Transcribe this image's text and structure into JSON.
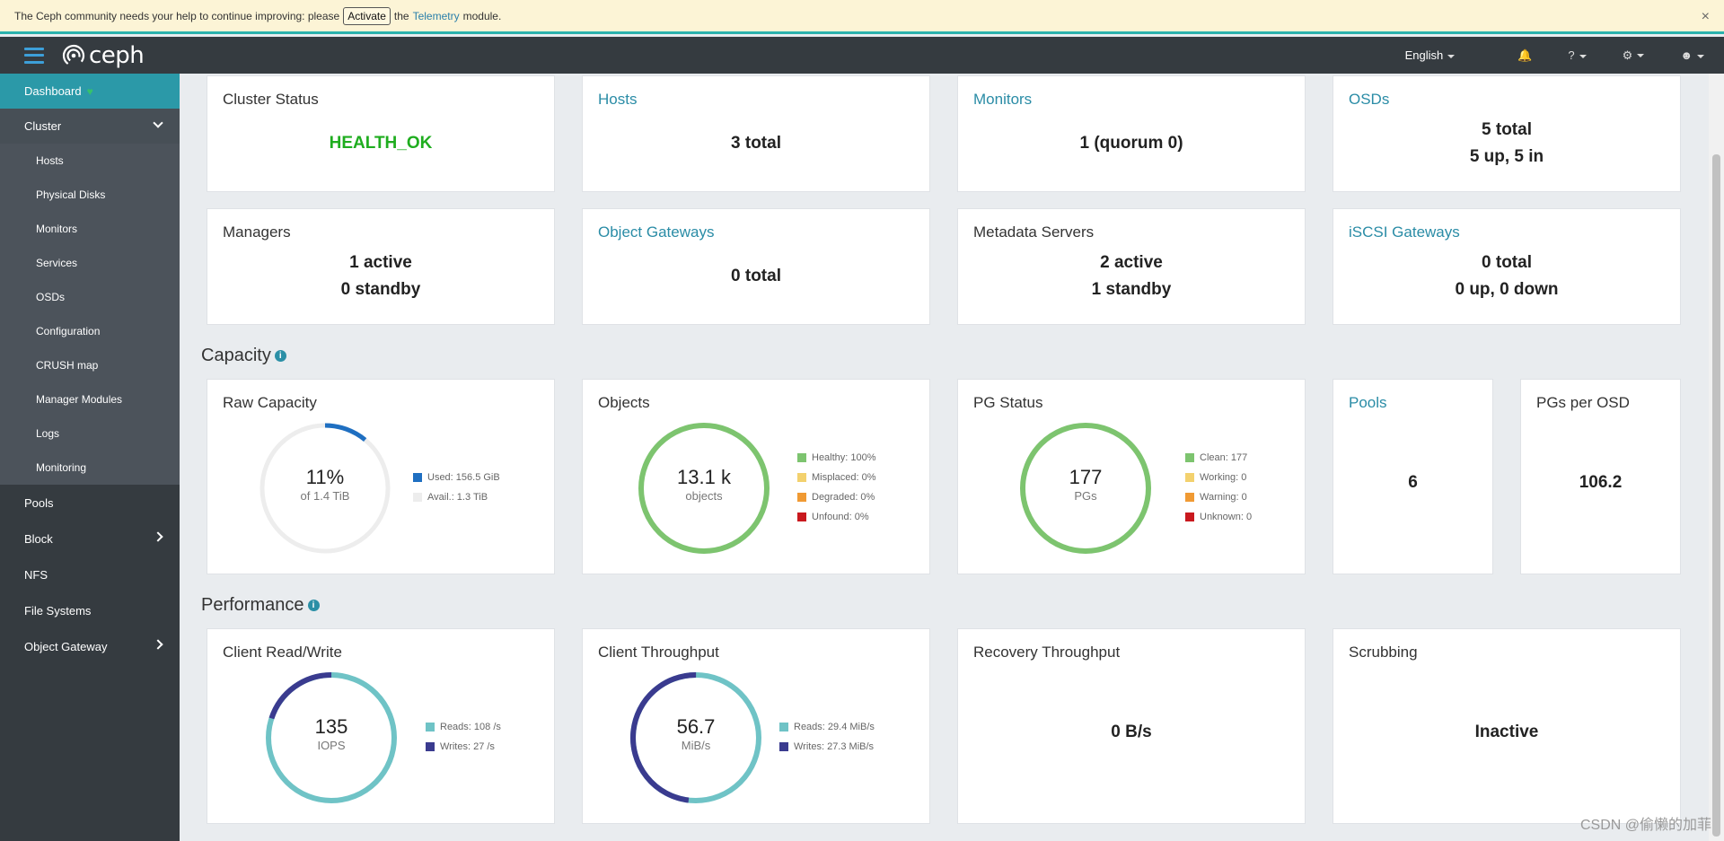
{
  "notice": {
    "text_before": "The Ceph community needs your help to continue improving: please",
    "activate_label": "Activate",
    "text_the": "the",
    "telemetry_link": "Telemetry",
    "text_after": "module.",
    "close_symbol": "×"
  },
  "topnav": {
    "brand": "ceph",
    "language": "English"
  },
  "sidebar": {
    "dashboard": "Dashboard",
    "cluster": "Cluster",
    "cluster_items": [
      "Hosts",
      "Physical Disks",
      "Monitors",
      "Services",
      "OSDs",
      "Configuration",
      "CRUSH map",
      "Manager Modules",
      "Logs",
      "Monitoring"
    ],
    "pools": "Pools",
    "block": "Block",
    "nfs": "NFS",
    "file_systems": "File Systems",
    "object_gateway": "Object Gateway"
  },
  "status": {
    "cluster_status": {
      "title": "Cluster Status",
      "value": "HEALTH_OK"
    },
    "hosts": {
      "title": "Hosts",
      "value": "3 total"
    },
    "monitors": {
      "title": "Monitors",
      "value": "1 (quorum 0)"
    },
    "osds": {
      "title": "OSDs",
      "line1": "5 total",
      "line2": "5 up, 5 in"
    },
    "managers": {
      "title": "Managers",
      "line1": "1 active",
      "line2": "0 standby"
    },
    "object_gateways": {
      "title": "Object Gateways",
      "value": "0 total"
    },
    "metadata_servers": {
      "title": "Metadata Servers",
      "line1": "2 active",
      "line2": "1 standby"
    },
    "iscsi": {
      "title": "iSCSI Gateways",
      "line1": "0 total",
      "line2": "0 up, 0 down"
    }
  },
  "capacity": {
    "section_title": "Capacity",
    "raw": {
      "title": "Raw Capacity",
      "big": "11%",
      "small": "of 1.4 TiB",
      "used_fraction": 0.11,
      "legend": [
        "Used: 156.5 GiB",
        "Avail.: 1.3 TiB"
      ]
    },
    "objects": {
      "title": "Objects",
      "big": "13.1 k",
      "small": "objects",
      "legend": [
        "Healthy: 100%",
        "Misplaced: 0%",
        "Degraded: 0%",
        "Unfound: 0%"
      ]
    },
    "pg_status": {
      "title": "PG Status",
      "big": "177",
      "small": "PGs",
      "legend": [
        "Clean: 177",
        "Working: 0",
        "Warning: 0",
        "Unknown: 0"
      ]
    },
    "pools": {
      "title": "Pools",
      "value": "6"
    },
    "pgs_per_osd": {
      "title": "PGs per OSD",
      "value": "106.2"
    }
  },
  "performance": {
    "section_title": "Performance",
    "client_rw": {
      "title": "Client Read/Write",
      "big": "135",
      "small": "IOPS",
      "reads": 108,
      "writes": 27,
      "legend": [
        "Reads: 108 /s",
        "Writes: 27 /s"
      ]
    },
    "client_tp": {
      "title": "Client Throughput",
      "big": "56.7",
      "small": "MiB/s",
      "reads": 29.4,
      "writes": 27.3,
      "legend": [
        "Reads: 29.4 MiB/s",
        "Writes: 27.3 MiB/s"
      ]
    },
    "recovery": {
      "title": "Recovery Throughput",
      "value": "0 B/s"
    },
    "scrubbing": {
      "title": "Scrubbing",
      "value": "Inactive"
    }
  },
  "colors": {
    "accent": "#2b99a8",
    "health_ok": "#1fad1f",
    "healthy_green": "#7dc46f",
    "used_blue": "#1f6fc1",
    "reads_teal": "#6fc3c6",
    "writes_indigo": "#3a3b8f",
    "misplaced": "#f3d16e",
    "degraded": "#f09a33",
    "unfound": "#c9191e"
  },
  "watermark": "CSDN @偷懒的加菲"
}
